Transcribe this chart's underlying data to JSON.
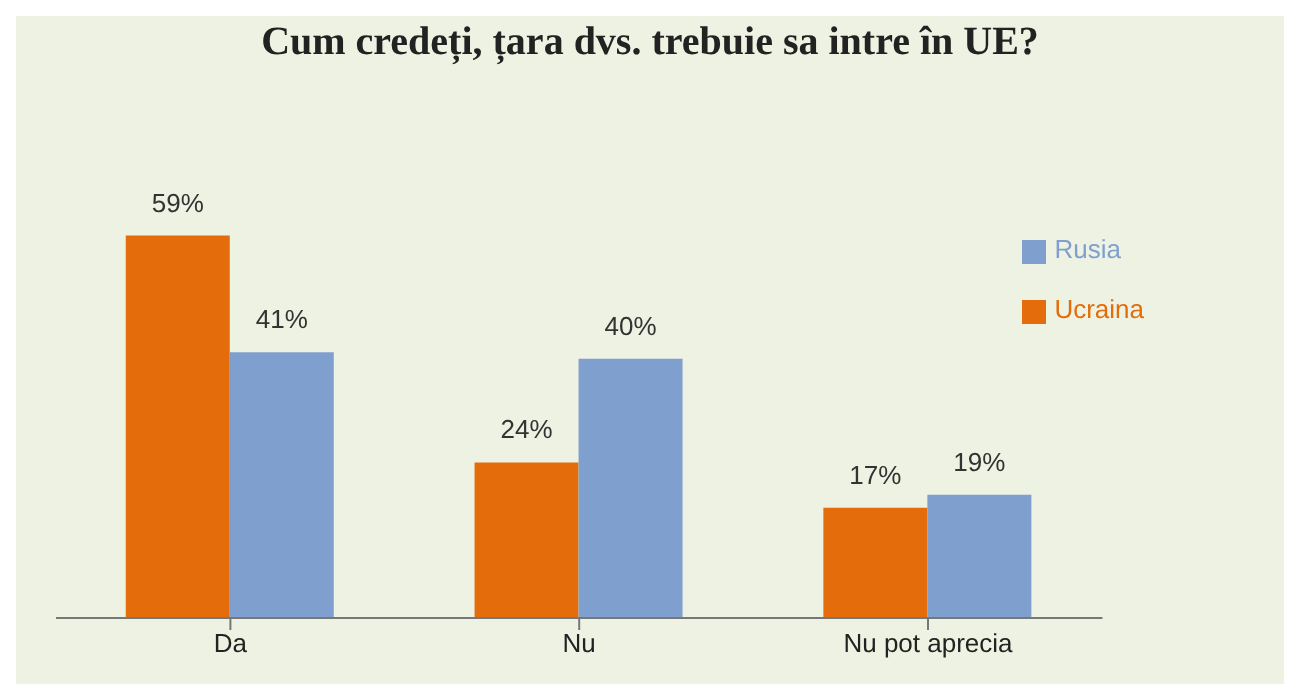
{
  "chart_data": {
    "type": "bar",
    "title": "Cum credeți, țara dvs. trebuie sa intre în UE?",
    "categories": [
      "Da",
      "Nu",
      "Nu pot aprecia"
    ],
    "series": [
      {
        "name": "Ucraina",
        "color": "#e46c0a",
        "values": [
          59,
          24,
          17
        ],
        "value_labels": [
          "59%",
          "24%",
          "17%"
        ]
      },
      {
        "name": "Rusia",
        "color": "#7f9fcf",
        "values": [
          41,
          40,
          19
        ],
        "value_labels": [
          "41%",
          "40%",
          "19%"
        ]
      }
    ],
    "legend": "top right",
    "grid": false
  }
}
